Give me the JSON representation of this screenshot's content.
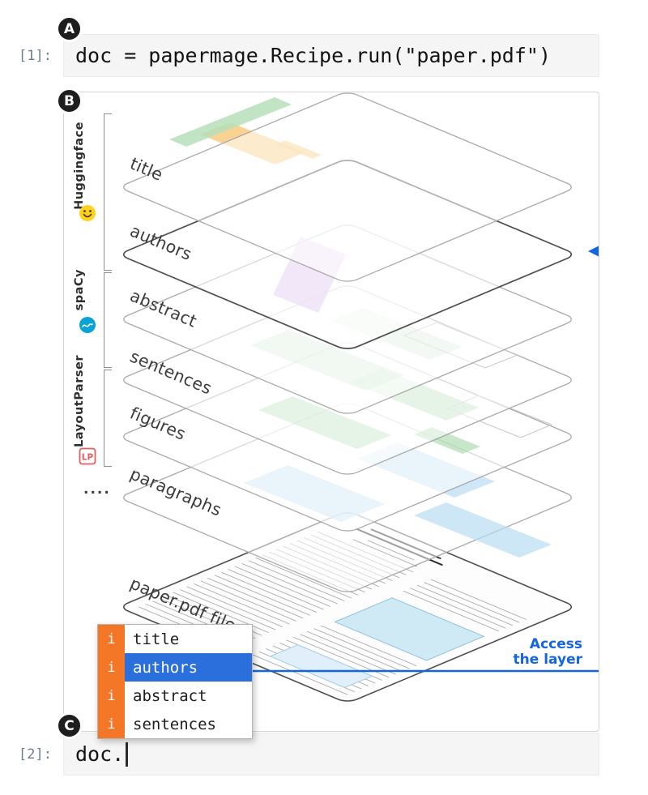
{
  "badges": {
    "a": "A",
    "b": "B",
    "c": "C"
  },
  "cells": [
    {
      "prompt": "[1]:",
      "code": "doc = papermage.Recipe.run(\"paper.pdf\")"
    },
    {
      "prompt": "[2]:",
      "code": "doc."
    }
  ],
  "diagram": {
    "layers": [
      {
        "label": "title"
      },
      {
        "label": "authors"
      },
      {
        "label": "abstract"
      },
      {
        "label": "sentences"
      },
      {
        "label": "figures"
      },
      {
        "label": "paragraphs"
      },
      {
        "label": "paper.pdf file"
      }
    ],
    "toolkits": [
      {
        "label": "Huggingface"
      },
      {
        "label": "spaCy"
      },
      {
        "label": "LayoutParser",
        "icon_text": "LP"
      }
    ],
    "more_layers": "....",
    "annotation": {
      "line1": "Access",
      "line2": "the layer"
    }
  },
  "dropdown": {
    "selected_index": 1,
    "items": [
      {
        "type_badge": "i",
        "label": "title"
      },
      {
        "type_badge": "i",
        "label": "authors"
      },
      {
        "type_badge": "i",
        "label": "abstract"
      },
      {
        "type_badge": "i",
        "label": "sentences"
      }
    ]
  },
  "colors": {
    "accent_blue": "#1565e0",
    "selection_blue": "#2a6fdb",
    "completion_orange": "#f37726",
    "huggingface_yellow": "#ffd21e",
    "spacy_cyan": "#09a3d5",
    "layoutparser_red": "#e35d5d",
    "title_green": "#b5dfba",
    "authors_orange": "#f9c878",
    "abstract_purple": "#d9b8ea",
    "sentences_green": "#cde9cf",
    "figures_green": "#a9d9ae",
    "paragraphs_blue": "#b9ddf4"
  }
}
